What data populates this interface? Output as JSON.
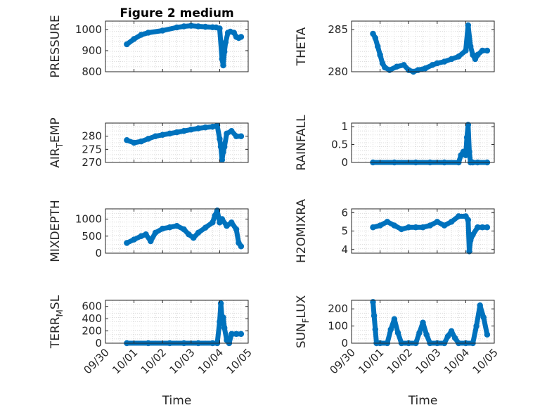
{
  "figure": {
    "title": "Figure 2 medium",
    "xlabel": "Time",
    "xticks": [
      "09/30",
      "10/01",
      "10/02",
      "10/03",
      "10/04",
      "10/05"
    ]
  },
  "colors": {
    "marker": "#0072BD",
    "axes": "#262626",
    "grid": "#d3d3d3"
  },
  "chart_data": [
    {
      "type": "scatter",
      "ylabel": "PRESSURE",
      "ylim": [
        800,
        1040
      ],
      "yticks": [
        "800",
        "900",
        "1000"
      ],
      "xlim": [
        "09/30",
        "10/05"
      ],
      "x": [
        "09/30 18:00",
        "10/01 00:00",
        "10/01 06:00",
        "10/01 12:00",
        "10/02 00:00",
        "10/02 12:00",
        "10/02 18:00",
        "10/03 00:00",
        "10/03 06:00",
        "10/03 12:00",
        "10/03 18:00",
        "10/03 21:00",
        "10/04 00:00",
        "10/04 02:00",
        "10/04 03:00",
        "10/04 04:00",
        "10/04 05:00",
        "10/04 07:00",
        "10/04 09:00",
        "10/04 12:00",
        "10/04 14:00",
        "10/04 16:00",
        "10/04 18:00"
      ],
      "y": [
        930,
        955,
        975,
        985,
        995,
        1010,
        1015,
        1018,
        1015,
        1013,
        1011,
        1010,
        1005,
        860,
        830,
        895,
        940,
        985,
        990,
        985,
        965,
        960,
        965
      ],
      "line": true
    },
    {
      "type": "scatter",
      "ylabel": "THETA",
      "ylim": [
        280,
        286
      ],
      "yticks": [
        "280",
        "285"
      ],
      "xlim": [
        "09/30",
        "10/05"
      ],
      "x": [
        "09/30 18:00",
        "09/30 20:00",
        "09/30 22:00",
        "10/01 00:00",
        "10/01 02:00",
        "10/01 04:00",
        "10/01 08:00",
        "10/01 14:00",
        "10/01 20:00",
        "10/02 00:00",
        "10/02 04:00",
        "10/02 08:00",
        "10/02 14:00",
        "10/02 20:00",
        "10/03 00:00",
        "10/03 06:00",
        "10/03 12:00",
        "10/03 18:00",
        "10/04 00:00",
        "10/04 02:00",
        "10/04 04:00",
        "10/04 06:00",
        "10/04 08:00",
        "10/04 10:00",
        "10/04 14:00",
        "10/04 18:00"
      ],
      "y": [
        284.5,
        284,
        283,
        282,
        281,
        280.5,
        280.2,
        280.6,
        280.8,
        280.2,
        280.0,
        280.2,
        280.4,
        280.8,
        281.0,
        281.2,
        281.5,
        281.8,
        282.5,
        285.5,
        283,
        282,
        281.5,
        282,
        282.5,
        282.5
      ],
      "line": true
    },
    {
      "type": "scatter",
      "ylabel": "AIR_TEMP",
      "ylim": [
        270,
        285
      ],
      "yticks": [
        "270",
        "275",
        "280"
      ],
      "xlim": [
        "09/30",
        "10/05"
      ],
      "x": [
        "09/30 18:00",
        "10/01 00:00",
        "10/01 06:00",
        "10/01 12:00",
        "10/01 18:00",
        "10/02 00:00",
        "10/02 06:00",
        "10/02 12:00",
        "10/02 18:00",
        "10/03 00:00",
        "10/03 06:00",
        "10/03 12:00",
        "10/03 18:00",
        "10/03 22:00",
        "10/04 00:00",
        "10/04 01:00",
        "10/04 02:00",
        "10/04 03:00",
        "10/04 04:00",
        "10/04 06:00",
        "10/04 10:00",
        "10/04 14:00",
        "10/04 18:00"
      ],
      "y": [
        278.5,
        277.5,
        278,
        279,
        280,
        280.5,
        281,
        281.5,
        282,
        282.5,
        283,
        283.3,
        283.6,
        284,
        279,
        276,
        271,
        274,
        276,
        281,
        282,
        280,
        280
      ],
      "line": true
    },
    {
      "type": "scatter",
      "ylabel": "RAINFALL",
      "ylim": [
        0,
        1.1
      ],
      "yticks": [
        "0",
        "0.5",
        "1"
      ],
      "xlim": [
        "09/30",
        "10/05"
      ],
      "x": [
        "09/30 18:00",
        "10/01 12:00",
        "10/02 06:00",
        "10/02 18:00",
        "10/03 06:00",
        "10/03 18:00",
        "10/03 20:00",
        "10/03 22:00",
        "10/04 00:00",
        "10/04 01:00",
        "10/04 02:00",
        "10/04 03:00",
        "10/04 04:00",
        "10/04 06:00",
        "10/04 10:00",
        "10/04 18:00"
      ],
      "y": [
        0,
        0,
        0,
        0,
        0,
        0,
        0.2,
        0.3,
        0.2,
        0.7,
        1.05,
        0.3,
        0,
        0,
        0,
        0
      ],
      "line": true
    },
    {
      "type": "scatter",
      "ylabel": "MIXDEPTH",
      "ylim": [
        0,
        1300
      ],
      "yticks": [
        "0",
        "500",
        "1000"
      ],
      "xlim": [
        "09/30",
        "10/05"
      ],
      "x": [
        "09/30 18:00",
        "10/01 00:00",
        "10/01 06:00",
        "10/01 10:00",
        "10/01 14:00",
        "10/01 18:00",
        "10/02 00:00",
        "10/02 06:00",
        "10/02 12:00",
        "10/02 18:00",
        "10/02 22:00",
        "10/03 02:00",
        "10/03 06:00",
        "10/03 12:00",
        "10/03 18:00",
        "10/03 20:00",
        "10/03 22:00",
        "10/04 00:00",
        "10/04 02:00",
        "10/04 06:00",
        "10/04 10:00",
        "10/04 14:00",
        "10/04 16:00",
        "10/04 18:00"
      ],
      "y": [
        300,
        400,
        500,
        550,
        350,
        600,
        720,
        760,
        800,
        700,
        550,
        450,
        600,
        750,
        900,
        1100,
        1250,
        900,
        1000,
        800,
        900,
        700,
        300,
        200
      ],
      "line": true
    },
    {
      "type": "scatter",
      "ylabel": "H2OMIXRA",
      "ylim": [
        3.8,
        6.2
      ],
      "yticks": [
        "4",
        "5",
        "6"
      ],
      "xlim": [
        "09/30",
        "10/05"
      ],
      "x": [
        "09/30 18:00",
        "10/01 00:00",
        "10/01 06:00",
        "10/01 12:00",
        "10/01 18:00",
        "10/02 00:00",
        "10/02 06:00",
        "10/02 12:00",
        "10/02 18:00",
        "10/03 00:00",
        "10/03 06:00",
        "10/03 12:00",
        "10/03 18:00",
        "10/04 00:00",
        "10/04 02:00",
        "10/04 03:00",
        "10/04 04:00",
        "10/04 06:00",
        "10/04 10:00",
        "10/04 14:00",
        "10/04 18:00"
      ],
      "y": [
        5.2,
        5.3,
        5.5,
        5.3,
        5.1,
        5.2,
        5.2,
        5.2,
        5.3,
        5.5,
        5.3,
        5.5,
        5.8,
        5.8,
        5.6,
        3.9,
        4.5,
        4.8,
        5.2,
        5.2,
        5.2
      ],
      "line": true
    },
    {
      "type": "scatter",
      "ylabel": "TERR_MSL",
      "ylim": [
        0,
        700
      ],
      "yticks": [
        "0",
        "200",
        "400",
        "600"
      ],
      "xlim": [
        "09/30",
        "10/05"
      ],
      "x": [
        "09/30 18:00",
        "10/01 12:00",
        "10/02 06:00",
        "10/02 18:00",
        "10/03 06:00",
        "10/03 18:00",
        "10/03 22:00",
        "10/04 00:00",
        "10/04 01:00",
        "10/04 02:00",
        "10/04 03:00",
        "10/04 04:00",
        "10/04 06:00",
        "10/04 08:00",
        "10/04 10:00",
        "10/04 14:00",
        "10/04 18:00"
      ],
      "y": [
        0,
        0,
        0,
        0,
        0,
        0,
        0,
        350,
        650,
        400,
        420,
        250,
        50,
        0,
        150,
        150,
        150
      ],
      "line": true
    },
    {
      "type": "scatter",
      "ylabel": "SUN_FLUX",
      "ylim": [
        0,
        250
      ],
      "yticks": [
        "0",
        "100",
        "200"
      ],
      "xlim": [
        "09/30",
        "10/05"
      ],
      "x": [
        "09/30 18:00",
        "09/30 19:00",
        "09/30 20:00",
        "09/30 21:00",
        "10/01 00:00",
        "10/01 06:00",
        "10/01 09:00",
        "10/01 12:00",
        "10/01 15:00",
        "10/01 18:00",
        "10/02 00:00",
        "10/02 06:00",
        "10/02 09:00",
        "10/02 12:00",
        "10/02 15:00",
        "10/02 18:00",
        "10/03 00:00",
        "10/03 06:00",
        "10/03 09:00",
        "10/03 12:00",
        "10/03 15:00",
        "10/03 18:00",
        "10/04 00:00",
        "10/04 06:00",
        "10/04 09:00",
        "10/04 12:00",
        "10/04 15:00",
        "10/04 18:00"
      ],
      "y": [
        240,
        160,
        80,
        0,
        0,
        0,
        80,
        140,
        60,
        0,
        0,
        0,
        60,
        120,
        50,
        0,
        0,
        0,
        40,
        70,
        30,
        0,
        0,
        0,
        100,
        220,
        150,
        50
      ],
      "line": true
    }
  ]
}
